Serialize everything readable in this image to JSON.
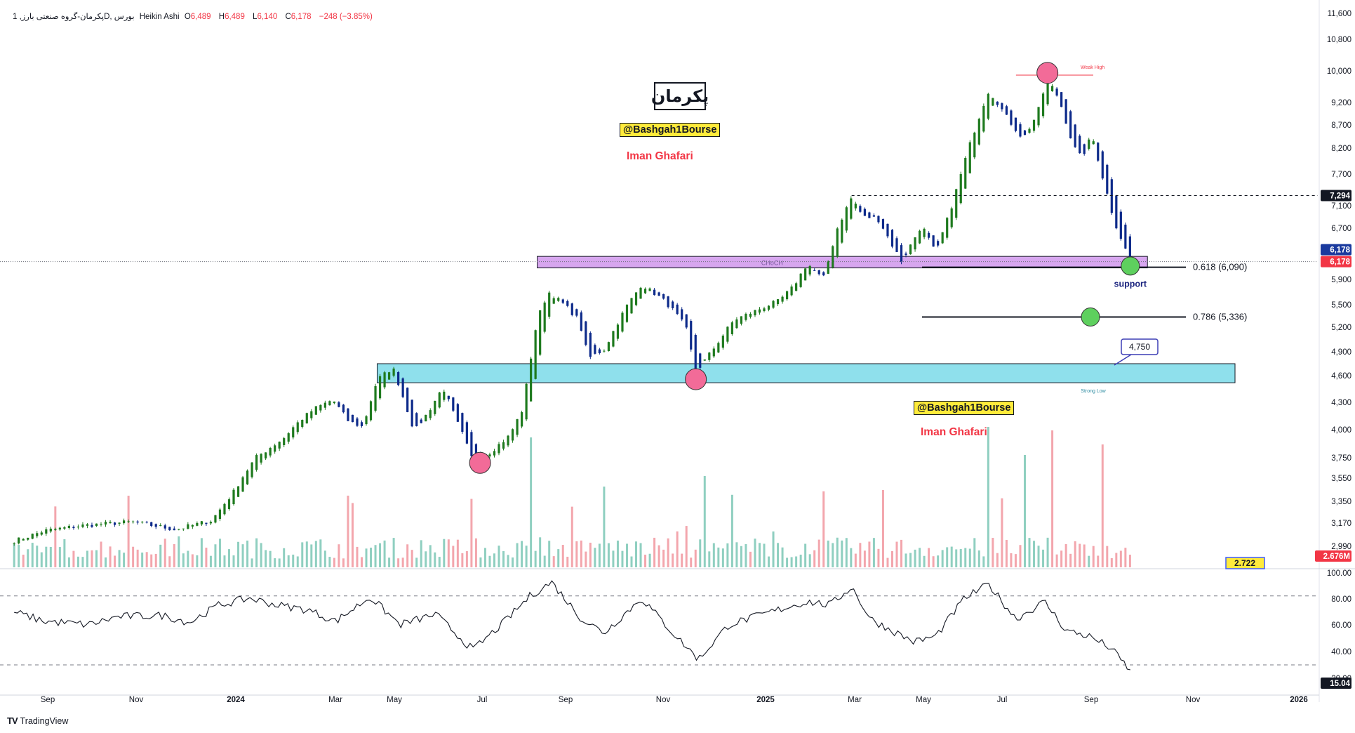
{
  "header": {
    "symbol": "پکرمان-گروه صنعتی بارز, 1D, بورس",
    "style": "Heikin Ashi",
    "o_key": "O",
    "o_val": "6,489",
    "h_key": "H",
    "h_val": "6,489",
    "l_key": "L",
    "l_val": "6,140",
    "c_key": "C",
    "c_val": "6,178",
    "change": "−248 (−3.85%)"
  },
  "annotations": {
    "title": "پکرمان",
    "handle": "@Bashgah1Bourse",
    "author": "Iman Ghafari",
    "support": "support",
    "fib_618": "0.618 (6,090)",
    "fib_786": "0.786 (5,336)",
    "target": "4,750",
    "weak_high": "Weak High",
    "strong_low": "Strong Low",
    "choch_zone": "CHoCH"
  },
  "badges": {
    "last_price": "6,178",
    "last_price_red": "6,178",
    "level_7294": "7,294",
    "volume": "2.676M",
    "volume_ma": "2.722",
    "rsi": "15.04"
  },
  "colors": {
    "up": "#1e7a1e",
    "down": "#0d2a8a",
    "vol_up": "#8fcfc0",
    "vol_down": "#f3a6ad",
    "support_zone": "#d7a6ef",
    "demand_zone": "#8fe0ec",
    "marker_pink": "#f26b98",
    "marker_green": "#5ed05e"
  },
  "footer": {
    "brand": "TradingView"
  },
  "chart_data": {
    "type": "candlestick",
    "ylim": [
      2900,
      11600
    ],
    "price_ticks": [
      "11,600",
      "10,800",
      "10,000",
      "9,200",
      "8,700",
      "8,200",
      "7,700",
      "7,100",
      "6,700",
      "5,900",
      "5,500",
      "5,200",
      "4,900",
      "4,600",
      "4,300",
      "4,000",
      "3,750",
      "3,550",
      "3,350",
      "3,170",
      "2,990"
    ],
    "x_ticks": [
      "Sep",
      "Nov",
      "2024",
      "Mar",
      "May",
      "Jul",
      "Sep",
      "Nov",
      "2025",
      "Mar",
      "May",
      "Jul",
      "Sep",
      "Nov",
      "2026"
    ],
    "price_anchors": [
      [
        "2023-07-20",
        3030
      ],
      [
        "2023-08-10",
        3110
      ],
      [
        "2023-09-05",
        3150
      ],
      [
        "2023-10-10",
        3180
      ],
      [
        "2023-11-10",
        3120
      ],
      [
        "2023-12-05",
        3190
      ],
      [
        "2023-12-20",
        3420
      ],
      [
        "2024-01-05",
        3750
      ],
      [
        "2024-01-25",
        3930
      ],
      [
        "2024-02-05",
        4100
      ],
      [
        "2024-02-15",
        4230
      ],
      [
        "2024-02-28",
        4330
      ],
      [
        "2024-03-10",
        4090
      ],
      [
        "2024-03-20",
        4030
      ],
      [
        "2024-03-30",
        4550
      ],
      [
        "2024-04-10",
        4700
      ],
      [
        "2024-04-25",
        3980
      ],
      [
        "2024-05-05",
        4200
      ],
      [
        "2024-05-15",
        4470
      ],
      [
        "2024-05-25",
        4080
      ],
      [
        "2024-06-05",
        3720
      ],
      [
        "2024-06-15",
        3780
      ],
      [
        "2024-07-01",
        3950
      ],
      [
        "2024-07-10",
        4230
      ],
      [
        "2024-07-20",
        5300
      ],
      [
        "2024-07-28",
        5700
      ],
      [
        "2024-08-05",
        5560
      ],
      [
        "2024-08-18",
        5300
      ],
      [
        "2024-08-25",
        4820
      ],
      [
        "2024-09-05",
        4930
      ],
      [
        "2024-09-20",
        5460
      ],
      [
        "2024-10-01",
        5820
      ],
      [
        "2024-10-15",
        5600
      ],
      [
        "2024-10-25",
        5380
      ],
      [
        "2024-11-01",
        5200
      ],
      [
        "2024-11-08",
        4640
      ],
      [
        "2024-11-20",
        4930
      ],
      [
        "2024-12-05",
        5300
      ],
      [
        "2024-12-20",
        5420
      ],
      [
        "2025-01-05",
        5560
      ],
      [
        "2025-01-15",
        5780
      ],
      [
        "2025-01-25",
        6150
      ],
      [
        "2025-02-05",
        5900
      ],
      [
        "2025-02-15",
        6700
      ],
      [
        "2025-02-25",
        7260
      ],
      [
        "2025-03-05",
        6900
      ],
      [
        "2025-03-15",
        6880
      ],
      [
        "2025-03-25",
        6450
      ],
      [
        "2025-04-01",
        6180
      ],
      [
        "2025-04-15",
        6750
      ],
      [
        "2025-04-25",
        6300
      ],
      [
        "2025-05-05",
        7000
      ],
      [
        "2025-05-20",
        8400
      ],
      [
        "2025-06-01",
        9500
      ],
      [
        "2025-06-15",
        8800
      ],
      [
        "2025-06-25",
        8400
      ],
      [
        "2025-07-05",
        8950
      ],
      [
        "2025-07-12",
        9800
      ],
      [
        "2025-07-20",
        9300
      ],
      [
        "2025-07-30",
        8250
      ],
      [
        "2025-08-05",
        8000
      ],
      [
        "2025-08-12",
        8480
      ],
      [
        "2025-08-20",
        7600
      ],
      [
        "2025-08-28",
        6800
      ],
      [
        "2025-09-08",
        6178
      ]
    ],
    "volume_anchors": [
      [
        "2024-07-15",
        3.7
      ],
      [
        "2024-07-22",
        2.9
      ],
      [
        "2024-09-05",
        2.3
      ],
      [
        "2024-11-15",
        2.6
      ],
      [
        "2025-03-20",
        2.2
      ],
      [
        "2025-06-01",
        4.0
      ],
      [
        "2025-06-10",
        3.6
      ],
      [
        "2025-06-25",
        3.2
      ],
      [
        "2025-07-15",
        3.9
      ],
      [
        "2025-08-20",
        3.5
      ]
    ],
    "rsi_anchors": [
      [
        "2023-07-20",
        66
      ],
      [
        "2023-08-10",
        58
      ],
      [
        "2023-09-10",
        55
      ],
      [
        "2023-10-01",
        62
      ],
      [
        "2023-11-01",
        63
      ],
      [
        "2023-11-20",
        57
      ],
      [
        "2023-12-10",
        72
      ],
      [
        "2024-01-01",
        78
      ],
      [
        "2024-01-20",
        72
      ],
      [
        "2024-02-10",
        68
      ],
      [
        "2024-03-01",
        58
      ],
      [
        "2024-03-25",
        79
      ],
      [
        "2024-04-15",
        55
      ],
      [
        "2024-05-10",
        64
      ],
      [
        "2024-06-05",
        33
      ],
      [
        "2024-06-25",
        55
      ],
      [
        "2024-07-15",
        80
      ],
      [
        "2024-07-30",
        92
      ],
      [
        "2024-08-20",
        60
      ],
      [
        "2024-09-05",
        48
      ],
      [
        "2024-10-01",
        78
      ],
      [
        "2024-10-25",
        45
      ],
      [
        "2024-11-10",
        25
      ],
      [
        "2024-12-01",
        55
      ],
      [
        "2024-12-20",
        62
      ],
      [
        "2025-01-10",
        70
      ],
      [
        "2025-01-25",
        75
      ],
      [
        "2025-02-10",
        72
      ],
      [
        "2025-02-25",
        88
      ],
      [
        "2025-03-10",
        60
      ],
      [
        "2025-03-25",
        50
      ],
      [
        "2025-04-10",
        40
      ],
      [
        "2025-04-25",
        45
      ],
      [
        "2025-05-15",
        78
      ],
      [
        "2025-06-01",
        90
      ],
      [
        "2025-06-20",
        60
      ],
      [
        "2025-07-10",
        75
      ],
      [
        "2025-07-25",
        50
      ],
      [
        "2025-08-10",
        45
      ],
      [
        "2025-08-25",
        35
      ],
      [
        "2025-09-08",
        15
      ]
    ],
    "levels": {
      "fib_618": 6090,
      "fib_786": 5336,
      "target": 4750,
      "resistance": 7294,
      "last": 6178
    },
    "zones": {
      "support": [
        6080,
        6260
      ],
      "demand": [
        4520,
        4750
      ]
    },
    "rsi_range": [
      0,
      100
    ],
    "rsi_ticks": [
      "100.00",
      "80.00",
      "60.00",
      "40.00",
      "20.00"
    ]
  }
}
